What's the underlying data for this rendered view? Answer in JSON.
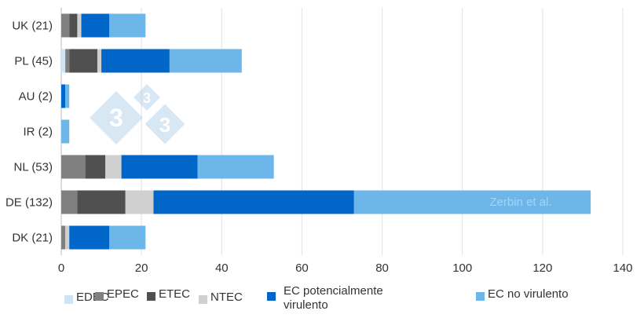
{
  "chart_data": {
    "type": "bar",
    "orientation": "horizontal",
    "stacked": true,
    "categories": [
      "UK (21)",
      "PL (45)",
      "AU (2)",
      "IR (2)",
      "NL (53)",
      "DE (132)",
      "DK (21)"
    ],
    "series": [
      {
        "name": "EDEC",
        "color": "#cfe3f3",
        "values": [
          0,
          1,
          0,
          0,
          0,
          0,
          0
        ]
      },
      {
        "name": "EPEC",
        "color": "#808080",
        "values": [
          2,
          1,
          0,
          0,
          6,
          4,
          1
        ]
      },
      {
        "name": "ETEC",
        "color": "#505050",
        "values": [
          2,
          7,
          0,
          0,
          5,
          12,
          0
        ]
      },
      {
        "name": "NTEC",
        "color": "#d0d0d0",
        "values": [
          1,
          1,
          0,
          0,
          4,
          7,
          1
        ]
      },
      {
        "name": "EC potencialmente virulento",
        "color": "#0066c8",
        "values": [
          7,
          17,
          1,
          0,
          19,
          50,
          10
        ]
      },
      {
        "name": "EC no virulento",
        "color": "#6db6ea",
        "values": [
          9,
          18,
          1,
          2,
          19,
          59,
          9
        ]
      }
    ],
    "xlim": [
      0,
      140
    ],
    "xticks": [
      0,
      20,
      40,
      60,
      80,
      100,
      120,
      140
    ],
    "grid": "vertical",
    "legend_position": "bottom",
    "annotation": "Zerbin et al.",
    "watermark": "333"
  }
}
